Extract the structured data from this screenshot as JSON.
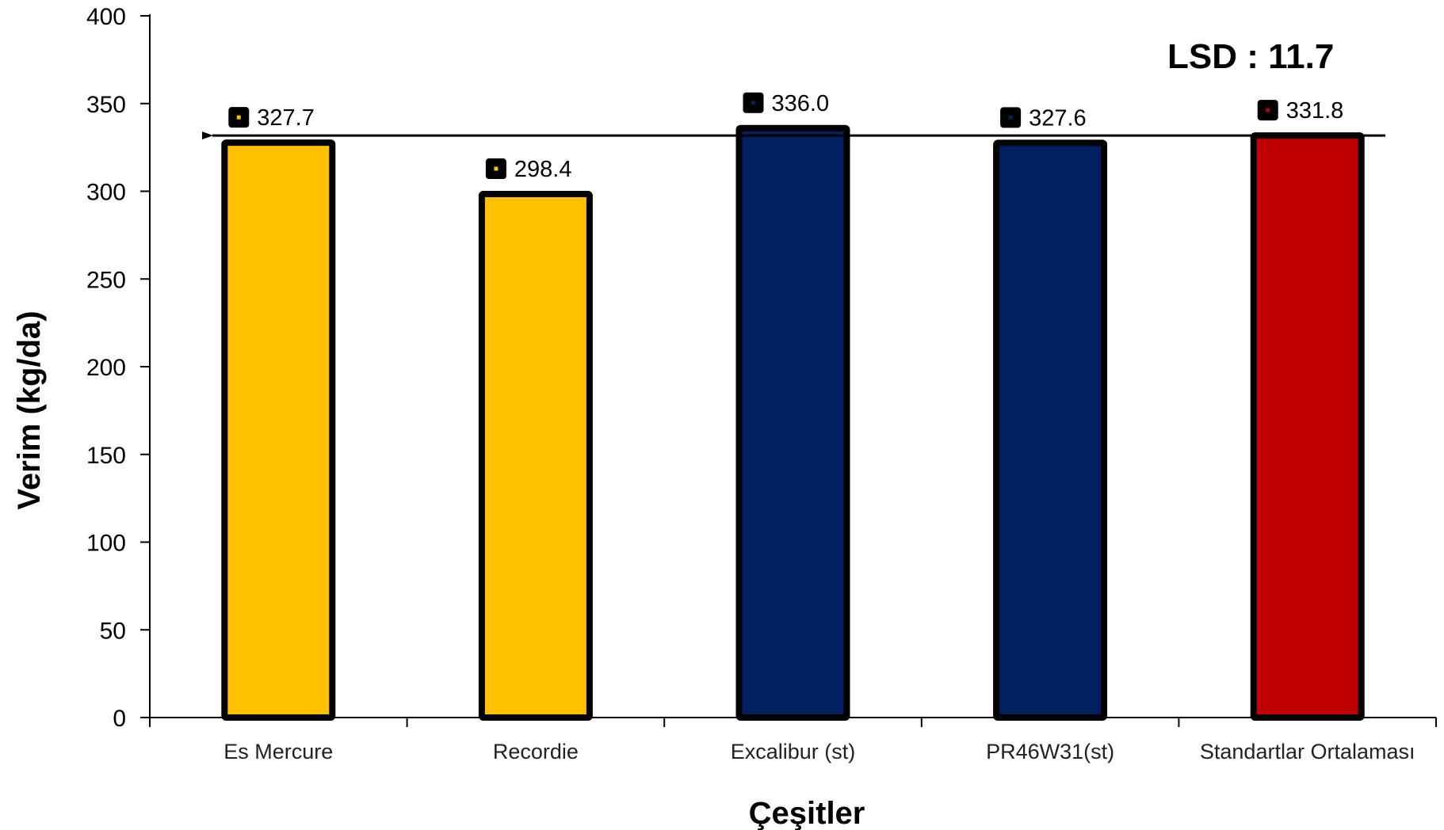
{
  "chart_data": {
    "type": "bar",
    "categories": [
      "Es Mercure",
      "Recordie",
      "Excalibur (st)",
      "PR46W31(st)",
      "Standartlar Ortalaması"
    ],
    "values": [
      327.7,
      298.4,
      336.0,
      327.6,
      331.8
    ],
    "value_labels": [
      "327.7",
      "298.4",
      "336.0",
      "327.6",
      "331.8"
    ],
    "bar_colors": [
      "#FFC000",
      "#FFC000",
      "#002060",
      "#002060",
      "#C00000"
    ],
    "marker_colors": [
      "#FFC000",
      "#FFC000",
      "#002060",
      "#002060",
      "#C00000"
    ],
    "xlabel": "Çeşitler",
    "ylabel": "Verim (kg/da)",
    "ylim": [
      0,
      400
    ],
    "yticks": [
      0,
      50,
      100,
      150,
      200,
      250,
      300,
      350,
      400
    ],
    "ytick_labels": [
      "0",
      "50",
      "100",
      "150",
      "200",
      "250",
      "300",
      "350",
      "400"
    ],
    "reference_line": {
      "value": 331.8,
      "arrow": "left"
    },
    "annotation": "LSD : 11.7",
    "grid": false,
    "legend": "none"
  }
}
